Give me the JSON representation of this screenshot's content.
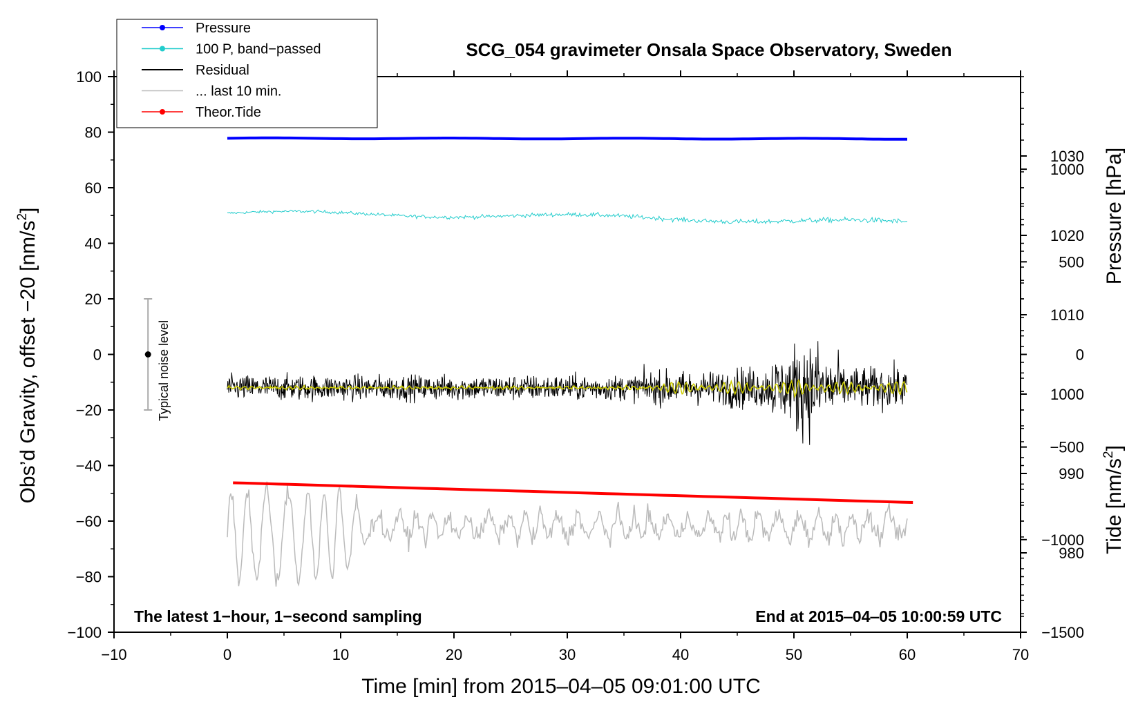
{
  "chart_data": {
    "type": "line",
    "title": "SCG_054 gravimeter Onsala Space Observatory, Sweden",
    "xlabel": "Time [min] from 2015‒04‒05 09:01:00 UTC",
    "ylabel_left": "Obs'd Gravity, offset −20 [nm/s2]",
    "ylabel_left_base": "Obs’d Gravity, offset −20 [nm/s",
    "ylabel_left_sup": "2",
    "ylabel_left_end": "]",
    "ylabel_right_top": "Pressure [hPa]",
    "ylabel_right_bottom_base": "Tide [nm/s",
    "ylabel_right_bottom_sup": "2",
    "ylabel_right_bottom_end": "]",
    "xlim": [
      -10,
      70
    ],
    "ylim": [
      -100,
      100
    ],
    "pressure_axis_lim": [
      970,
      1040
    ],
    "tide_axis_lim": [
      -1500,
      1500
    ],
    "x_ticks": [
      -10,
      0,
      10,
      20,
      30,
      40,
      50,
      60,
      70
    ],
    "x_tick_labels": [
      "−10",
      "0",
      "10",
      "20",
      "30",
      "40",
      "50",
      "60",
      "70"
    ],
    "y_ticks": [
      -100,
      -80,
      -60,
      -40,
      -20,
      0,
      20,
      40,
      60,
      80,
      100
    ],
    "y_tick_labels": [
      "−100",
      "−80",
      "−60",
      "−40",
      "−20",
      "0",
      "20",
      "40",
      "60",
      "80",
      "100"
    ],
    "pressure_ticks": [
      980,
      990,
      1000,
      1010,
      1020,
      1030
    ],
    "pressure_tick_labels": [
      "980",
      "990",
      "1000",
      "1010",
      "1020",
      "1030"
    ],
    "tide_ticks": [
      -1500,
      -1000,
      -500,
      0,
      500,
      1000
    ],
    "tide_tick_labels": [
      "−1500",
      "−1000",
      "−500",
      "0",
      "500",
      "1000"
    ],
    "legend": [
      {
        "label": "Pressure",
        "color": "#0000ff",
        "marker": true
      },
      {
        "label": "100 P, band−passed",
        "color": "#22cccc",
        "marker": true
      },
      {
        "label": "Residual",
        "color": "#000000",
        "marker": false
      },
      {
        "label": "... last 10 min.",
        "color": "#bbbbbb",
        "marker": false
      },
      {
        "label": "Theor.Tide",
        "color": "#ff0000",
        "marker": true
      }
    ],
    "legend_position": "top-left",
    "series": [
      {
        "name": "Pressure",
        "color": "#0000ff",
        "x_range": [
          0,
          60
        ],
        "y_start": 77.8,
        "y_end": 77.6
      },
      {
        "name": "100 P, band−passed",
        "color": "#22cccc",
        "x_range": [
          0,
          60
        ],
        "y_start": 50.8,
        "y_end": 47.2
      },
      {
        "name": "Residual",
        "color": "#000000",
        "x_range": [
          0,
          60
        ],
        "y_center": -12
      },
      {
        "name": "Residual (smoothed)",
        "color": "#cccc00",
        "x_range": [
          0,
          60
        ],
        "y_center": -12
      },
      {
        "name": "Theor.Tide",
        "color": "#ff0000",
        "x_range": [
          0.5,
          60.5
        ],
        "y_start": -46.2,
        "y_end": -53.3
      },
      {
        "name": "... last 10 min.",
        "color": "#bbbbbb",
        "x_range": [
          0,
          60
        ],
        "y_center": -62
      }
    ],
    "noise_bar": {
      "x": -7,
      "y_center": 0,
      "half_range": 20,
      "label": "Typical noise level"
    },
    "note_left": "The latest 1−hour, 1−second sampling",
    "note_right": "End at 2015‒04‒05 10:00:59 UTC"
  }
}
